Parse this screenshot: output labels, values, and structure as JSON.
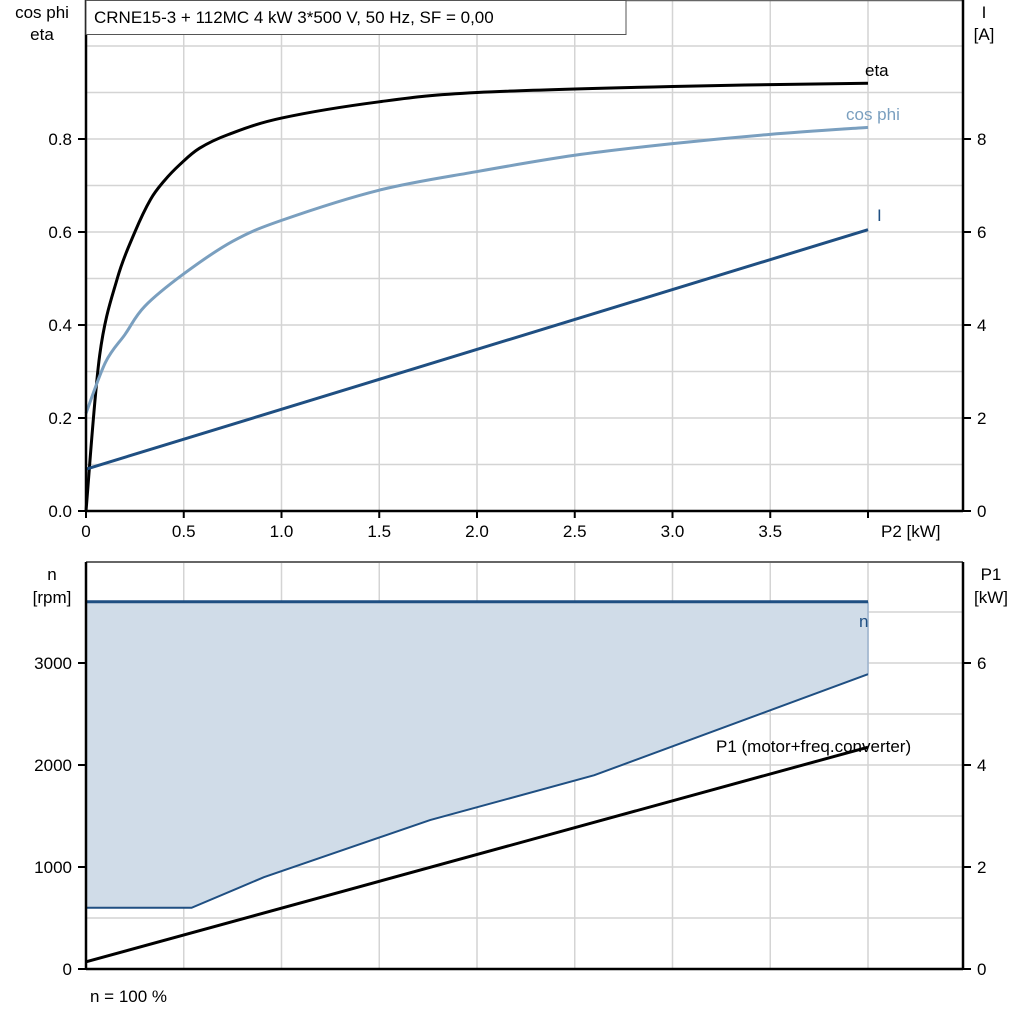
{
  "chart_data": [
    {
      "type": "line",
      "title": "CRNE15-3 + 112MC   4 kW   3*500 V, 50 Hz, SF = 0,00",
      "xlabel": "P2 [kW]",
      "ylabel_left": [
        "cos phi",
        "eta"
      ],
      "ylabel_right": [
        "I",
        "[A]"
      ],
      "xlim": [
        0,
        4.5
      ],
      "ylim_left": [
        0,
        1.1
      ],
      "ylim_right": [
        0,
        11
      ],
      "x_ticks": [
        "0",
        "0.5",
        "1.0",
        "1.5",
        "2.0",
        "2.5",
        "3.0",
        "3.5",
        ""
      ],
      "y_ticks_left": [
        "0.0",
        "0.2",
        "0.4",
        "0.6",
        "0.8"
      ],
      "y_ticks_right": [
        "0",
        "2",
        "4",
        "6",
        "8"
      ],
      "grid": true,
      "series": [
        {
          "name": "eta",
          "axis": "left",
          "color": "#000000",
          "x": [
            0,
            0.07,
            0.16,
            0.25,
            0.33,
            0.4,
            0.48,
            0.58,
            0.73,
            1.0,
            1.5,
            2.0,
            3.0,
            4.0
          ],
          "y": [
            0,
            0.335,
            0.5,
            0.6,
            0.67,
            0.71,
            0.745,
            0.78,
            0.81,
            0.845,
            0.88,
            0.9,
            0.913,
            0.92
          ]
        },
        {
          "name": "cos phi",
          "axis": "left",
          "color": "#7a9fbf",
          "x": [
            0,
            0.1,
            0.2,
            0.3,
            0.5,
            0.75,
            1.0,
            1.5,
            2.0,
            2.5,
            3.0,
            3.5,
            4.0
          ],
          "y": [
            0.21,
            0.32,
            0.38,
            0.44,
            0.51,
            0.58,
            0.625,
            0.69,
            0.73,
            0.765,
            0.79,
            0.81,
            0.825
          ]
        },
        {
          "name": "I",
          "axis": "right",
          "color": "#1f4f82",
          "x": [
            0,
            4.0
          ],
          "y": [
            0.9,
            6.05
          ]
        }
      ]
    },
    {
      "type": "area",
      "xlabel": "",
      "ylabel_left": [
        "n",
        "[rpm]"
      ],
      "ylabel_right": [
        "P1",
        "[kW]"
      ],
      "xlim": [
        0,
        4.5
      ],
      "ylim_left": [
        0,
        4000
      ],
      "ylim_right": [
        0,
        8
      ],
      "y_ticks_left": [
        "0",
        "1000",
        "2000",
        "3000"
      ],
      "y_ticks_right": [
        "0",
        "2",
        "4",
        "6"
      ],
      "grid": true,
      "annotation": "n = 100 %",
      "series": [
        {
          "name": "n",
          "axis": "left",
          "color": "#1f4f82",
          "x": [
            0,
            4.0
          ],
          "y": [
            3600,
            3600
          ]
        },
        {
          "name": "",
          "axis": "left",
          "color": "#1f4f82",
          "x": [
            0,
            0.54,
            0.91,
            1.76,
            2.6,
            4.0
          ],
          "y": [
            600,
            600,
            900,
            1460,
            1900,
            2890
          ]
        },
        {
          "name": "P1 (motor+freq.converter)",
          "axis": "right",
          "color": "#000000",
          "x": [
            0,
            4.0
          ],
          "y": [
            0.14,
            4.35
          ]
        }
      ],
      "fill_color": "#d0dce8"
    }
  ]
}
